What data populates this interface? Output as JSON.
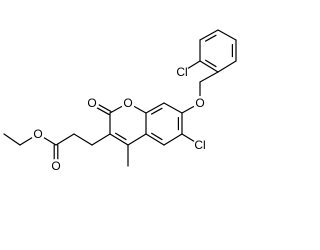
{
  "molecule": {
    "atom_labels": [
      "O",
      "O",
      "O",
      "O",
      "Cl",
      "O",
      "Cl"
    ]
  }
}
